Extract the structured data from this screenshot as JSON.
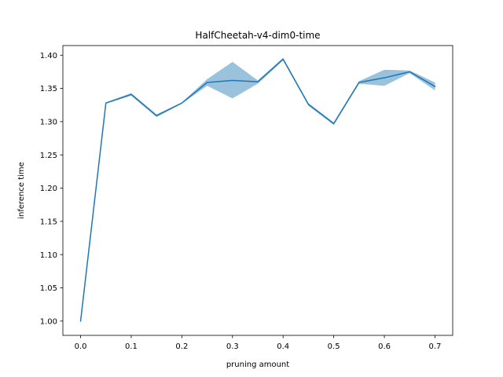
{
  "chart_data": {
    "type": "line",
    "title": "HalfCheetah-v4-dim0-time",
    "xlabel": "pruning amount",
    "ylabel": "inference time",
    "xlim": [
      -0.035,
      0.735
    ],
    "ylim": [
      0.9785,
      1.4145
    ],
    "xticks": [
      0.0,
      0.1,
      0.2,
      0.3,
      0.4,
      0.5,
      0.6,
      0.7
    ],
    "xtick_labels": [
      "0.0",
      "0.1",
      "0.2",
      "0.3",
      "0.4",
      "0.5",
      "0.6",
      "0.7"
    ],
    "yticks": [
      1.0,
      1.05,
      1.1,
      1.15,
      1.2,
      1.25,
      1.3,
      1.35,
      1.4
    ],
    "ytick_labels": [
      "1.00",
      "1.05",
      "1.10",
      "1.15",
      "1.20",
      "1.25",
      "1.30",
      "1.35",
      "1.40"
    ],
    "grid": false,
    "x": [
      0.0,
      0.05,
      0.1,
      0.15,
      0.2,
      0.25,
      0.3,
      0.35,
      0.4,
      0.45,
      0.5,
      0.55,
      0.6,
      0.65,
      0.7
    ],
    "series": [
      {
        "values": [
          1.0,
          1.328,
          1.341,
          1.309,
          1.328,
          1.359,
          1.362,
          1.36,
          1.394,
          1.326,
          1.297,
          1.359,
          1.366,
          1.375,
          1.353
        ],
        "lower": [
          1.0,
          1.327,
          1.339,
          1.307,
          1.327,
          1.354,
          1.335,
          1.357,
          1.392,
          1.324,
          1.295,
          1.357,
          1.354,
          1.373,
          1.347
        ],
        "upper": [
          1.0,
          1.329,
          1.343,
          1.311,
          1.329,
          1.364,
          1.39,
          1.362,
          1.396,
          1.328,
          1.299,
          1.361,
          1.378,
          1.377,
          1.359
        ],
        "color": "#1f77b4",
        "band_color": "#1f77b4",
        "band_opacity": 0.45
      }
    ]
  }
}
